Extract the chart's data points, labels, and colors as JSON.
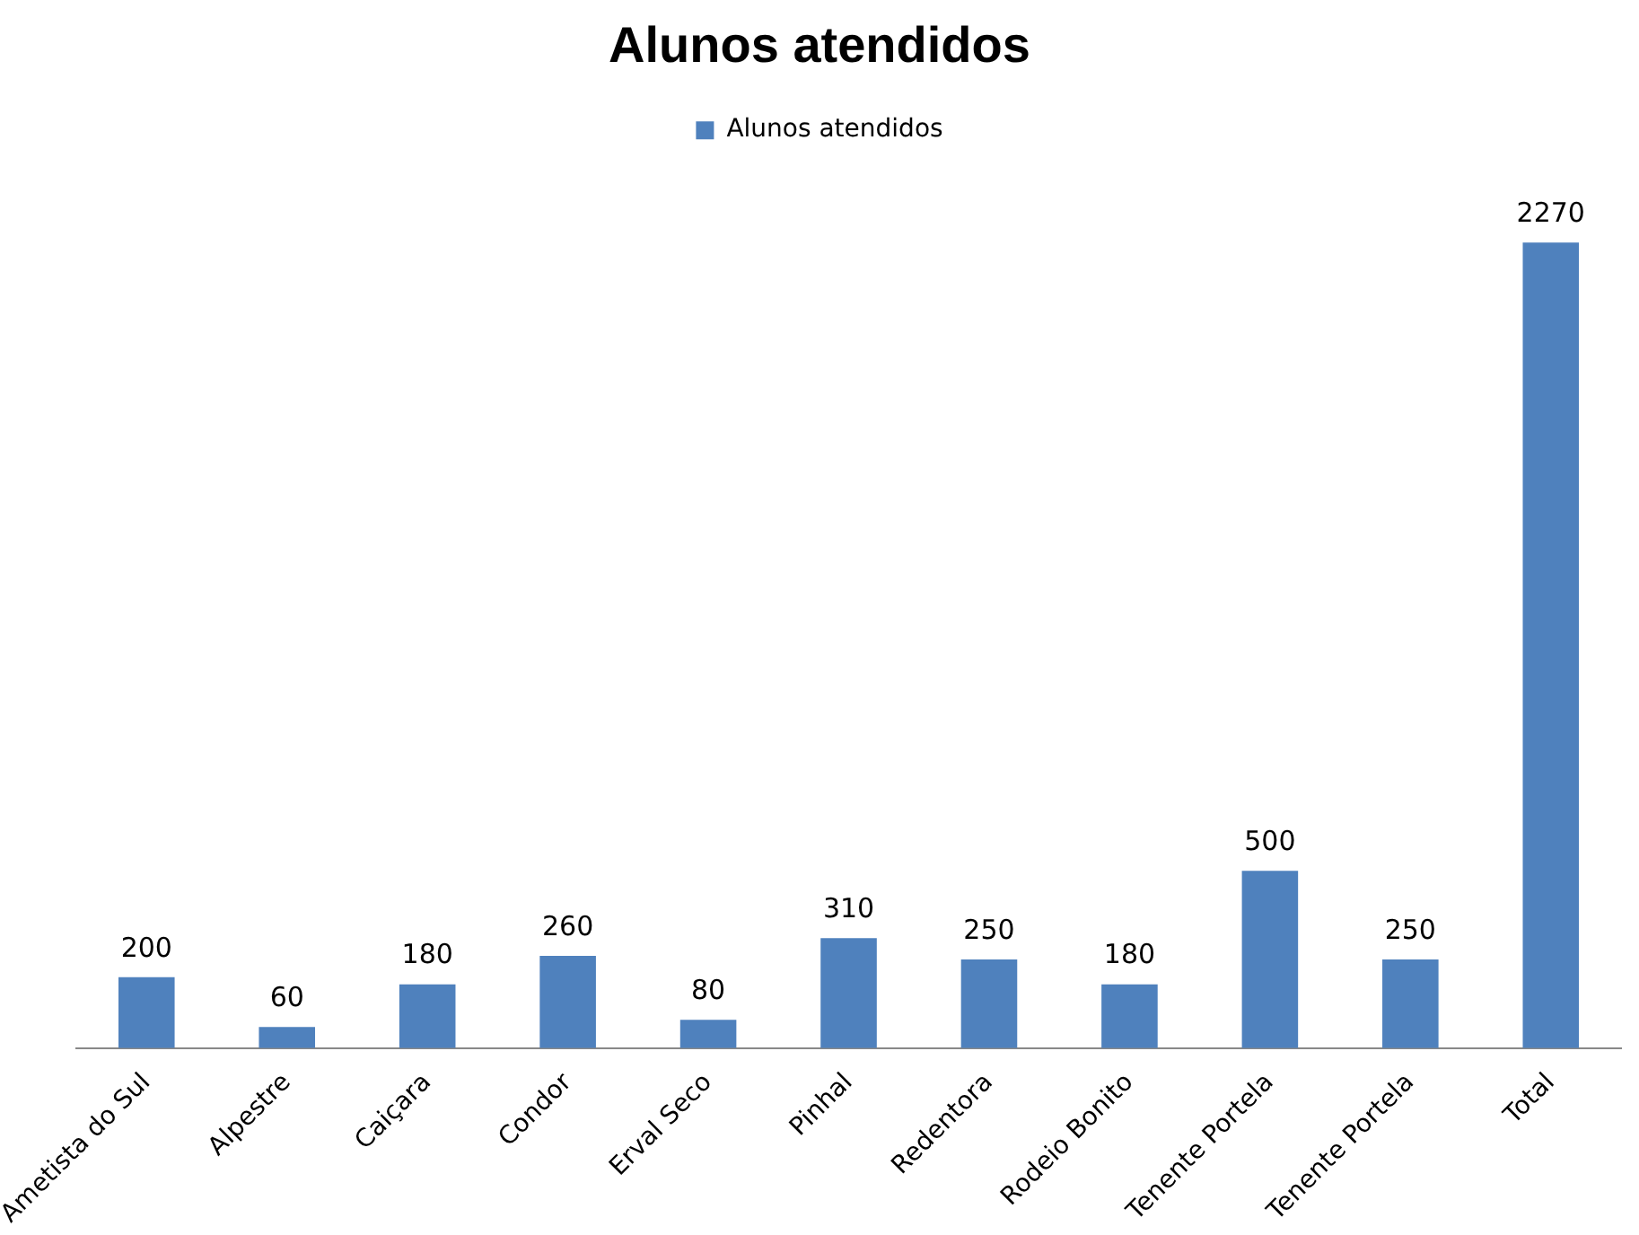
{
  "chart_data": {
    "type": "bar",
    "title": "Alunos atendidos",
    "categories": [
      "Ametista do Sul",
      "Alpestre",
      "Caiçara",
      "Condor",
      "Erval Seco",
      "Pinhal",
      "Redentora",
      "Rodeio Bonito",
      "Tenente Portela",
      "Tenente Portela",
      "Total"
    ],
    "series": [
      {
        "name": "Alunos atendidos",
        "color": "#4f81bd",
        "values": [
          200,
          60,
          180,
          260,
          80,
          310,
          250,
          180,
          500,
          250,
          2270
        ]
      }
    ],
    "data_labels": true,
    "legend": "top",
    "grid": false,
    "tick_labels": "x"
  }
}
